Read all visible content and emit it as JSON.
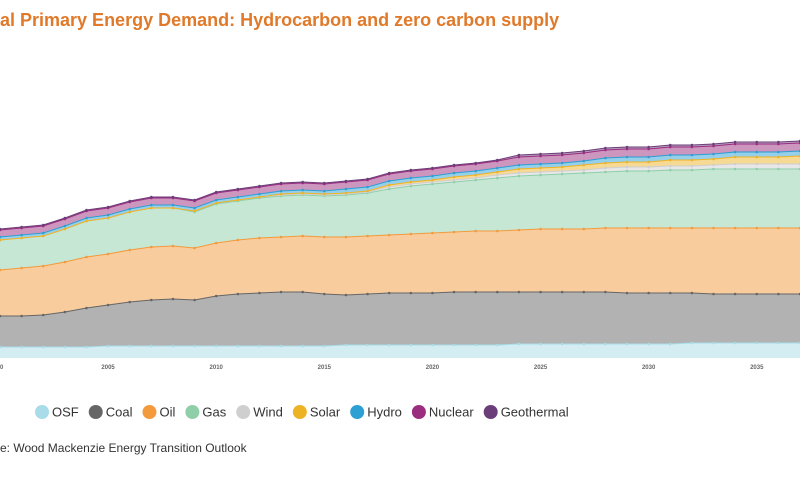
{
  "chart_data": {
    "type": "stacked-area",
    "title": "al Primary Energy Demand: Hydrocarbon and zero carbon supply",
    "source": "e: Wood Mackenzie Energy Transition Outlook",
    "x": [
      2000,
      2001,
      2002,
      2003,
      2004,
      2005,
      2006,
      2007,
      2008,
      2009,
      2010,
      2011,
      2012,
      2013,
      2014,
      2015,
      2016,
      2017,
      2018,
      2019,
      2020,
      2021,
      2022,
      2023,
      2024,
      2025,
      2026,
      2027,
      2028,
      2029,
      2030,
      2031,
      2032,
      2033,
      2034,
      2035,
      2036,
      2037
    ],
    "xlim": [
      2000,
      2037
    ],
    "xticks": [
      {
        "value": 2000,
        "label": "0"
      },
      2005,
      2010,
      2015,
      2020,
      2025,
      2030,
      2035
    ],
    "ylim": [
      0,
      250
    ],
    "series": [
      {
        "name": "OSF",
        "color": "#a8dce8",
        "values": [
          11,
          11,
          11,
          11,
          11,
          12,
          12,
          12,
          12,
          12,
          12,
          12,
          12,
          12,
          12,
          12,
          13,
          13,
          13,
          13,
          13,
          13,
          13,
          13,
          14,
          14,
          14,
          14,
          14,
          14,
          14,
          14,
          15,
          15,
          15,
          15,
          15,
          15
        ]
      },
      {
        "name": "Coal",
        "color": "#666666",
        "values": [
          31,
          31,
          32,
          35,
          39,
          41,
          44,
          46,
          47,
          46,
          50,
          52,
          53,
          54,
          54,
          52,
          50,
          51,
          52,
          52,
          52,
          53,
          53,
          53,
          52,
          52,
          52,
          52,
          52,
          51,
          51,
          51,
          50,
          49,
          49,
          49,
          49,
          49
        ]
      },
      {
        "name": "Oil",
        "color": "#f39a3c",
        "values": [
          46,
          48,
          49,
          50,
          51,
          51,
          52,
          53,
          53,
          52,
          53,
          54,
          55,
          55,
          56,
          57,
          58,
          58,
          58,
          59,
          60,
          60,
          61,
          61,
          62,
          63,
          63,
          63,
          64,
          65,
          65,
          65,
          65,
          66,
          66,
          66,
          66,
          66
        ]
      },
      {
        "name": "Gas",
        "color": "#8ecfaa",
        "values": [
          30,
          30,
          30,
          33,
          36,
          36,
          38,
          39,
          38,
          36,
          39,
          39,
          40,
          41,
          41,
          41,
          42,
          43,
          46,
          48,
          49,
          50,
          51,
          53,
          54,
          54,
          55,
          56,
          56,
          57,
          57,
          58,
          58,
          59,
          59,
          59,
          59,
          59
        ]
      },
      {
        "name": "Wind",
        "color": "#cfcfcf",
        "values": [
          0,
          0,
          0,
          0,
          0,
          0,
          0,
          0,
          0,
          1,
          1,
          1,
          1,
          1,
          1,
          1,
          1,
          1,
          2,
          2,
          2,
          2,
          2,
          3,
          3,
          3,
          3,
          3,
          4,
          4,
          4,
          4,
          4,
          4,
          5,
          5,
          5,
          5
        ]
      },
      {
        "name": "Solar",
        "color": "#eeb325",
        "values": [
          0,
          0,
          0,
          0,
          0,
          0,
          0,
          0,
          0,
          0,
          0,
          0,
          0,
          1,
          1,
          1,
          1,
          1,
          2,
          2,
          2,
          3,
          3,
          3,
          4,
          4,
          4,
          5,
          5,
          5,
          5,
          6,
          6,
          6,
          7,
          7,
          7,
          8
        ]
      },
      {
        "name": "Hydro",
        "color": "#2c9fd3",
        "values": [
          3,
          3,
          3,
          3,
          3,
          3,
          3,
          3,
          3,
          3,
          3,
          3,
          3,
          3,
          3,
          3,
          4,
          4,
          4,
          4,
          4,
          4,
          4,
          4,
          4,
          4,
          4,
          4,
          5,
          5,
          5,
          5,
          5,
          5,
          5,
          5,
          5,
          5
        ]
      },
      {
        "name": "Nuclear",
        "color": "#9b2d7f",
        "values": [
          7,
          7,
          7,
          7,
          7,
          7,
          7,
          7,
          7,
          7,
          7,
          7,
          7,
          7,
          7,
          7,
          7,
          7,
          7,
          7,
          7,
          7,
          7,
          7,
          8,
          8,
          8,
          8,
          8,
          8,
          8,
          8,
          8,
          8,
          8,
          8,
          8,
          8
        ]
      },
      {
        "name": "Geothermal",
        "color": "#6b3d79",
        "values": [
          1,
          1,
          1,
          1,
          1,
          1,
          1,
          1,
          1,
          1,
          1,
          1,
          1,
          1,
          1,
          1,
          1,
          1,
          1,
          1,
          1,
          1,
          1,
          1,
          2,
          2,
          2,
          2,
          2,
          2,
          2,
          2,
          2,
          2,
          2,
          2,
          2,
          2
        ]
      }
    ]
  }
}
